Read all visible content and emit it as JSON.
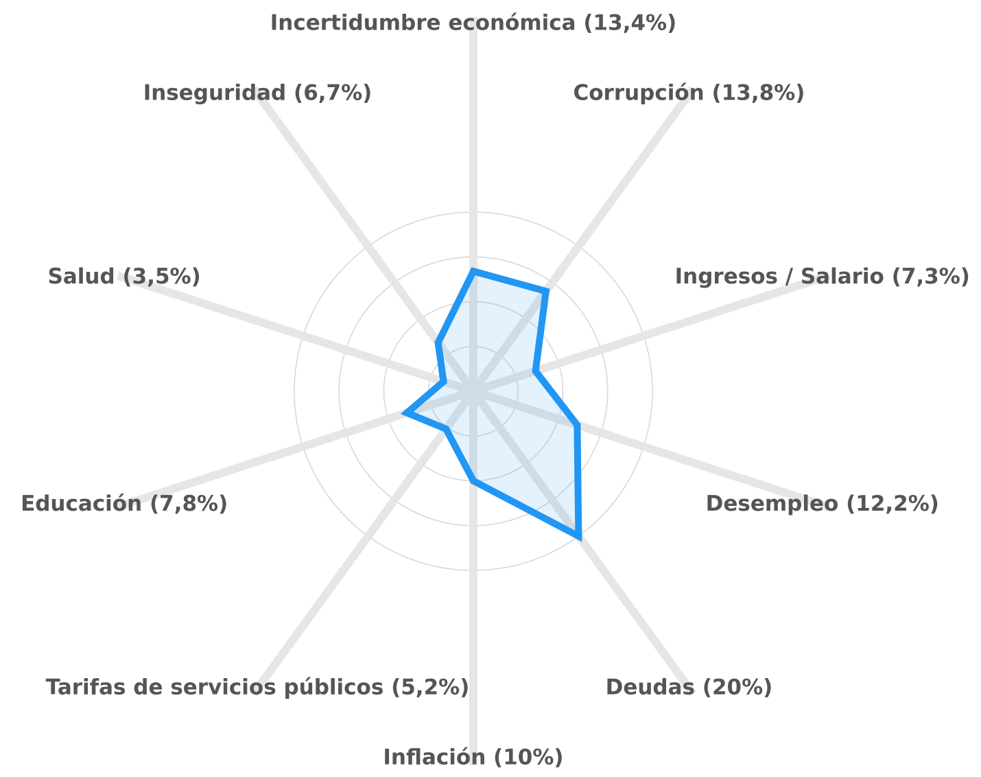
{
  "chart_data": {
    "type": "radar",
    "categories": [
      "Incertidumbre económica (13,4%)",
      "Corrupción (13,8%)",
      "Ingresos / Salario (7,3%)",
      "Desempleo (12,2%)",
      "Deudas (20%)",
      "Inflación (10%)",
      "Tarifas de servicios públicos (5,2%)",
      "Educación (7,8%)",
      "Salud (3,5%)",
      "Inseguridad (6,7%)"
    ],
    "values": [
      13.4,
      13.8,
      7.3,
      12.2,
      20,
      10,
      5.2,
      7.8,
      3.5,
      6.7
    ],
    "color": "#2196f3",
    "ylim": [
      0,
      20
    ],
    "yticks": [
      5,
      10,
      15,
      20
    ],
    "grid": true
  }
}
